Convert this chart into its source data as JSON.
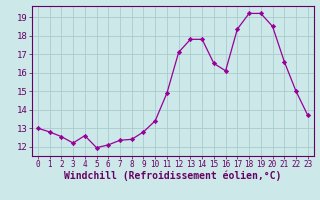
{
  "x": [
    0,
    1,
    2,
    3,
    4,
    5,
    6,
    7,
    8,
    9,
    10,
    11,
    12,
    13,
    14,
    15,
    16,
    17,
    18,
    19,
    20,
    21,
    22,
    23
  ],
  "y": [
    13.0,
    12.8,
    12.55,
    12.2,
    12.6,
    11.95,
    12.1,
    12.35,
    12.4,
    12.8,
    13.4,
    14.9,
    17.1,
    17.8,
    17.8,
    16.5,
    16.1,
    18.35,
    19.2,
    19.2,
    18.5,
    16.6,
    15.0,
    13.7
  ],
  "line_color": "#990099",
  "marker": "D",
  "marker_size": 2.2,
  "bg_color": "#cce8e8",
  "grid_color": "#aacccc",
  "xlabel": "Windchill (Refroidissement éolien,°C)",
  "ylabel": "",
  "xlim": [
    -0.5,
    23.5
  ],
  "ylim": [
    11.5,
    19.6
  ],
  "yticks": [
    12,
    13,
    14,
    15,
    16,
    17,
    18,
    19
  ],
  "xticks": [
    0,
    1,
    2,
    3,
    4,
    5,
    6,
    7,
    8,
    9,
    10,
    11,
    12,
    13,
    14,
    15,
    16,
    17,
    18,
    19,
    20,
    21,
    22,
    23
  ],
  "xlabel_fontsize": 7,
  "tick_fontsize": 6.5,
  "xtick_fontsize": 5.5,
  "tick_color": "#660066",
  "label_color": "#660066",
  "spine_color": "#660066"
}
